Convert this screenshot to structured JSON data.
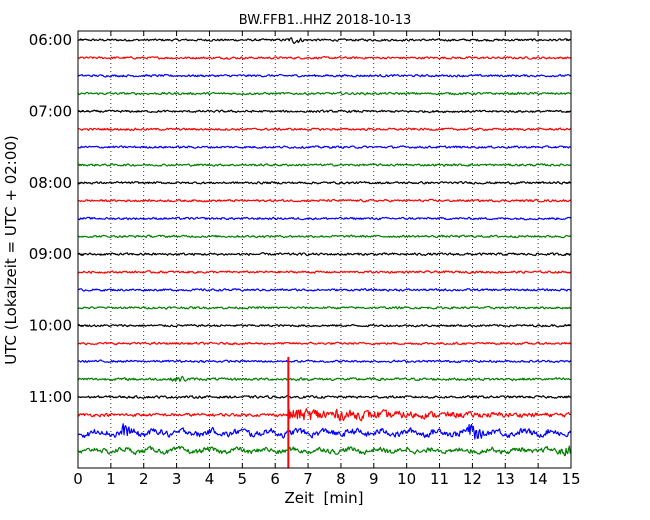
{
  "chart_data": {
    "type": "line",
    "title": "BW.FFB1..HHZ 2018-10-13",
    "xlabel": "Zeit  [min]",
    "ylabel": "UTC (Lokalzeit = UTC + 02:00)",
    "xlim": [
      0,
      15
    ],
    "x_ticks": [
      "0",
      "1",
      "2",
      "3",
      "4",
      "5",
      "6",
      "7",
      "8",
      "9",
      "10",
      "11",
      "12",
      "13",
      "14",
      "15"
    ],
    "y_ticks": [
      "06:00",
      "07:00",
      "08:00",
      "09:00",
      "10:00",
      "11:00"
    ],
    "grid": "vertical dotted",
    "line_interval_minutes": 15,
    "line_colors": [
      "#000000",
      "#ff0000",
      "#0000ff",
      "#008000"
    ],
    "series": [
      {
        "start": "06:00",
        "color": "#000000",
        "amplitude": 0.5,
        "events": [
          {
            "at_min": 6.6,
            "peak": 1.2
          }
        ]
      },
      {
        "start": "06:15",
        "color": "#ff0000",
        "amplitude": 0.5,
        "events": []
      },
      {
        "start": "06:30",
        "color": "#0000ff",
        "amplitude": 0.5,
        "events": []
      },
      {
        "start": "06:45",
        "color": "#008000",
        "amplitude": 0.5,
        "events": []
      },
      {
        "start": "07:00",
        "color": "#000000",
        "amplitude": 0.5,
        "events": []
      },
      {
        "start": "07:15",
        "color": "#ff0000",
        "amplitude": 0.5,
        "events": []
      },
      {
        "start": "07:30",
        "color": "#0000ff",
        "amplitude": 0.5,
        "events": []
      },
      {
        "start": "07:45",
        "color": "#008000",
        "amplitude": 0.5,
        "events": []
      },
      {
        "start": "08:00",
        "color": "#000000",
        "amplitude": 0.5,
        "events": []
      },
      {
        "start": "08:15",
        "color": "#ff0000",
        "amplitude": 0.5,
        "events": []
      },
      {
        "start": "08:30",
        "color": "#0000ff",
        "amplitude": 0.5,
        "events": []
      },
      {
        "start": "08:45",
        "color": "#008000",
        "amplitude": 0.5,
        "events": []
      },
      {
        "start": "09:00",
        "color": "#000000",
        "amplitude": 0.55,
        "events": []
      },
      {
        "start": "09:15",
        "color": "#ff0000",
        "amplitude": 0.5,
        "events": []
      },
      {
        "start": "09:30",
        "color": "#0000ff",
        "amplitude": 0.5,
        "events": []
      },
      {
        "start": "09:45",
        "color": "#008000",
        "amplitude": 0.5,
        "events": []
      },
      {
        "start": "10:00",
        "color": "#000000",
        "amplitude": 0.5,
        "events": []
      },
      {
        "start": "10:15",
        "color": "#ff0000",
        "amplitude": 0.5,
        "events": []
      },
      {
        "start": "10:30",
        "color": "#0000ff",
        "amplitude": 0.5,
        "events": []
      },
      {
        "start": "10:45",
        "color": "#008000",
        "amplitude": 0.6,
        "events": [
          {
            "at_min": 3.1,
            "peak": 1.0
          }
        ]
      },
      {
        "start": "11:00",
        "color": "#000000",
        "amplitude": 0.55,
        "events": []
      },
      {
        "start": "11:15",
        "color": "#ff0000",
        "amplitude": 0.7,
        "events": [
          {
            "at_min": 6.4,
            "peak": 8.5
          }
        ]
      },
      {
        "start": "11:30",
        "color": "#0000ff",
        "amplitude": 1.4,
        "events": [
          {
            "at_min": 1.4,
            "peak": 2.2
          },
          {
            "at_min": 12.0,
            "peak": 2.8
          }
        ]
      },
      {
        "start": "11:45",
        "color": "#008000",
        "amplitude": 1.1,
        "events": [
          {
            "at_min": 14.9,
            "peak": 1.6
          }
        ]
      }
    ],
    "marker": {
      "at_min": 6.4,
      "color": "#ff0000"
    }
  }
}
